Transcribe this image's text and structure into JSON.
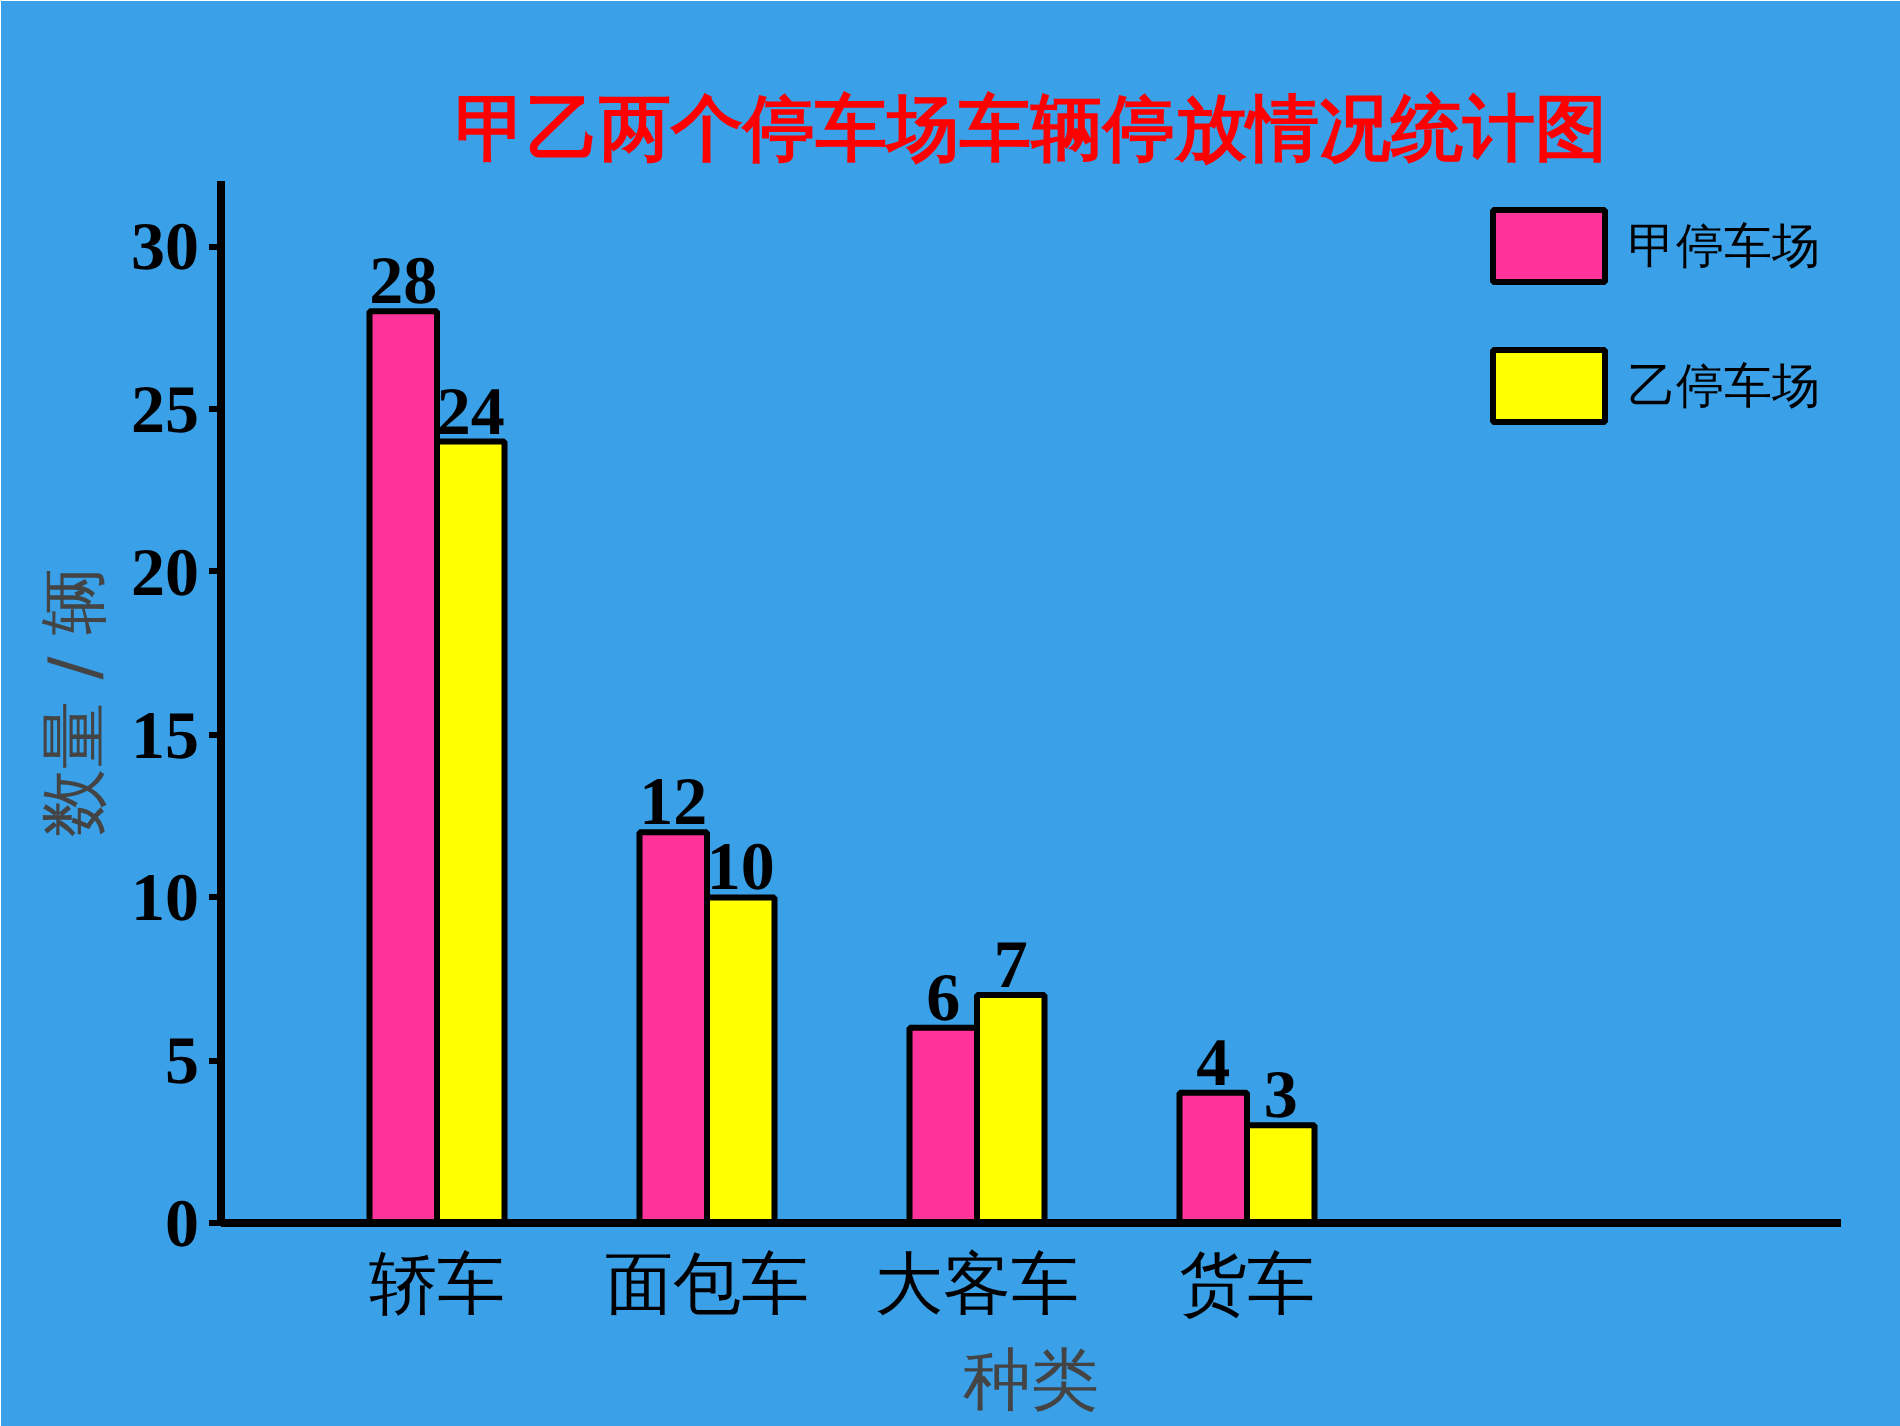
{
  "chart_data": {
    "type": "bar",
    "title": "甲乙两个停车场车辆停放情况统计图",
    "xlabel": "种类",
    "ylabel": "数量 / 辆",
    "categories": [
      "轿车",
      "面包车",
      "大客车",
      "货车"
    ],
    "series": [
      {
        "name": "甲停车场",
        "color": "#ff3399",
        "values": [
          28,
          12,
          6,
          4
        ]
      },
      {
        "name": "乙停车场",
        "color": "#ffff00",
        "values": [
          24,
          10,
          7,
          3
        ]
      }
    ],
    "ylim": [
      0,
      32
    ],
    "yticks": [
      0,
      5,
      10,
      15,
      20,
      25,
      30
    ],
    "data_labels": true,
    "legend": "top right",
    "grid": false
  }
}
